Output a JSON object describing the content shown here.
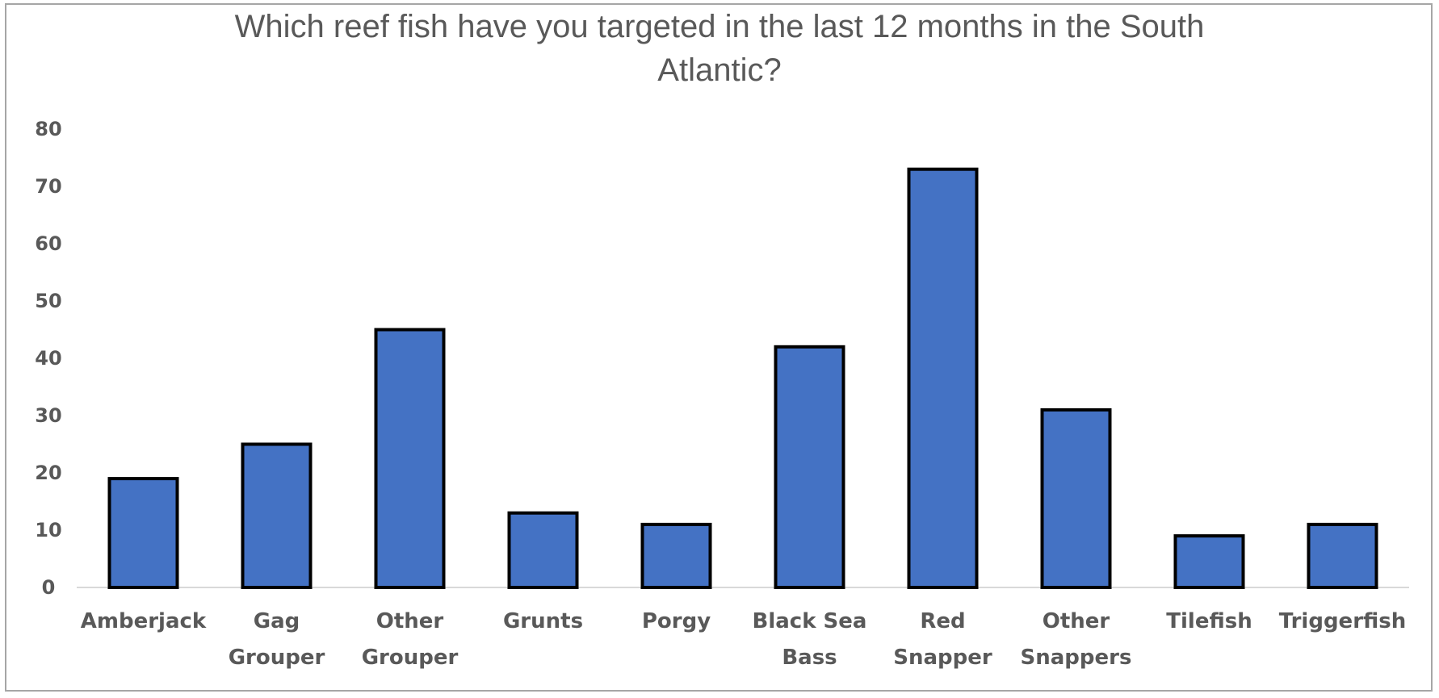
{
  "chart_data": {
    "type": "bar",
    "title_lines": [
      "Which reef fish have you targeted in the last 12 months in the South",
      "Atlantic?"
    ],
    "categories": [
      [
        "Amberjack"
      ],
      [
        "Gag",
        "Grouper"
      ],
      [
        "Other",
        "Grouper"
      ],
      [
        "Grunts"
      ],
      [
        "Porgy"
      ],
      [
        "Black Sea",
        "Bass"
      ],
      [
        "Red",
        "Snapper"
      ],
      [
        "Other",
        "Snappers"
      ],
      [
        "Tilefish"
      ],
      [
        "Triggerfish"
      ]
    ],
    "values": [
      19,
      25,
      45,
      13,
      11,
      42,
      73,
      31,
      9,
      11
    ],
    "ylim": [
      0,
      80
    ],
    "yticks": [
      "0",
      "10",
      "20",
      "30",
      "40",
      "50",
      "60",
      "70",
      "80"
    ],
    "xlabel": "",
    "ylabel": "",
    "grid": false,
    "legend": "none",
    "colors": {
      "bar": "#4472c4",
      "bar_outline": "#000000",
      "text": "#595959",
      "axis": "#d9d9d9"
    }
  }
}
